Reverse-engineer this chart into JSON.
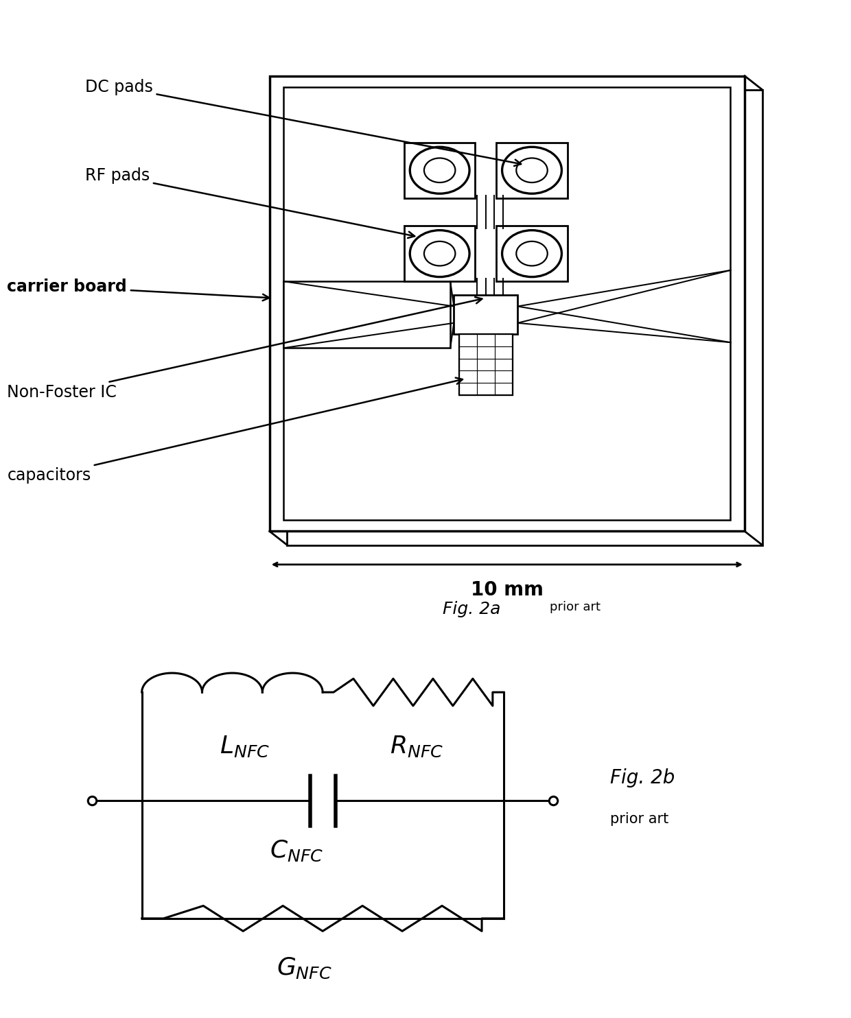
{
  "bg_color": "#ffffff",
  "line_color": "#000000",
  "fig2a_caption": "Fig. 2a",
  "fig2a_prior_art": "prior art",
  "fig2b_caption": "Fig. 2b",
  "fig2b_prior_art": "prior art",
  "dimension_label": "10 mm",
  "labels": {
    "dc_pads": "DC pads",
    "rf_pads": "RF pads",
    "carrier_board": "carrier board",
    "non_foster_ic": "Non-Foster IC",
    "capacitors": "capacitors"
  },
  "circuit_labels": {
    "L": "$\\mathit{L}_{NFC}$",
    "R": "$\\mathit{R}_{NFC}$",
    "C": "$\\mathit{C}_{NFC}$",
    "G": "$\\mathit{G}_{NFC}$"
  }
}
